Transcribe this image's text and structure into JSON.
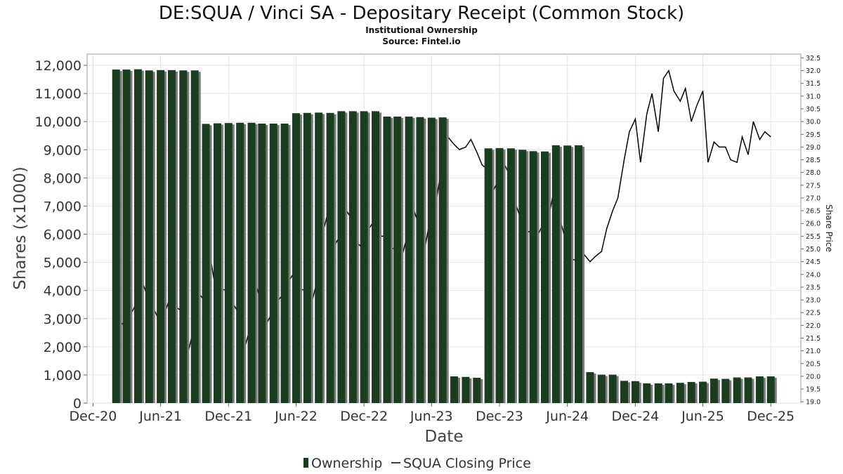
{
  "title": "DE:SQUA / Vinci SA - Depositary Receipt (Common Stock)",
  "subtitle_1": "Institutional Ownership",
  "subtitle_2": "Source: Fintel.io",
  "colors": {
    "bar": "#1a3d20",
    "bar_shadow": "#7a7a7a",
    "price_line": "#000000",
    "grid": "#e2e2e2"
  },
  "chart_data": {
    "type": "bar",
    "xlabel": "Date",
    "ylabel": "Shares (x1000)",
    "y2label": "Share Price",
    "ylim": [
      0,
      12400
    ],
    "y2lim": [
      18.95,
      32.65
    ],
    "xlim": [
      "2020-11-15",
      "2026-02-20"
    ],
    "grid": true,
    "legend_position": "bottom-center",
    "yticks": [
      0,
      1000,
      2000,
      3000,
      4000,
      5000,
      6000,
      7000,
      8000,
      9000,
      10000,
      11000,
      12000
    ],
    "ytick_labels": [
      "0",
      "1,000",
      "2,000",
      "3,000",
      "4,000",
      "5,000",
      "6,000",
      "7,000",
      "8,000",
      "9,000",
      "10,000",
      "11,000",
      "12,000"
    ],
    "y2ticks": [
      "19.0",
      "19.5",
      "20.0",
      "20.5",
      "21.0",
      "21.5",
      "22.0",
      "22.5",
      "23.0",
      "23.5",
      "24.0",
      "24.5",
      "25.0",
      "25.5",
      "26.0",
      "26.5",
      "27.0",
      "27.5",
      "28.0",
      "28.5",
      "29.0",
      "29.5",
      "30.0",
      "30.5",
      "31.0",
      "31.5",
      "32.0",
      "32.5"
    ],
    "xticks": [
      {
        "label": "Dec-20",
        "date": "2020-12-01"
      },
      {
        "label": "Jun-21",
        "date": "2021-06-01"
      },
      {
        "label": "Dec-21",
        "date": "2021-12-01"
      },
      {
        "label": "Jun-22",
        "date": "2022-06-01"
      },
      {
        "label": "Dec-22",
        "date": "2022-12-01"
      },
      {
        "label": "Jun-23",
        "date": "2023-06-01"
      },
      {
        "label": "Dec-23",
        "date": "2023-12-01"
      },
      {
        "label": "Jun-24",
        "date": "2024-06-01"
      },
      {
        "label": "Dec-24",
        "date": "2024-12-01"
      },
      {
        "label": "Jun-25",
        "date": "2025-06-01"
      },
      {
        "label": "Dec-25",
        "date": "2025-12-01"
      }
    ],
    "series": [
      {
        "name": "Ownership",
        "kind": "bar",
        "x": [
          "2021-02-01",
          "2021-03-01",
          "2021-04-01",
          "2021-05-01",
          "2021-06-01",
          "2021-07-01",
          "2021-08-01",
          "2021-09-01",
          "2021-10-01",
          "2021-11-01",
          "2021-12-01",
          "2022-01-01",
          "2022-02-01",
          "2022-03-01",
          "2022-04-01",
          "2022-05-01",
          "2022-06-01",
          "2022-07-01",
          "2022-08-01",
          "2022-09-01",
          "2022-10-01",
          "2022-11-01",
          "2022-12-01",
          "2023-01-01",
          "2023-02-01",
          "2023-03-01",
          "2023-04-01",
          "2023-05-01",
          "2023-06-01",
          "2023-07-01",
          "2023-08-01",
          "2023-09-01",
          "2023-10-01",
          "2023-11-01",
          "2023-12-01",
          "2024-01-01",
          "2024-02-01",
          "2024-03-01",
          "2024-04-01",
          "2024-05-01",
          "2024-06-01",
          "2024-07-01",
          "2024-08-01",
          "2024-09-01",
          "2024-10-01",
          "2024-11-01",
          "2024-12-01",
          "2025-01-01",
          "2025-02-01",
          "2025-03-01",
          "2025-04-01",
          "2025-05-01",
          "2025-06-01",
          "2025-07-01",
          "2025-08-01",
          "2025-09-01",
          "2025-10-01",
          "2025-11-01",
          "2025-12-01"
        ],
        "values": [
          11850,
          11850,
          11860,
          11820,
          11830,
          11830,
          11820,
          11820,
          9920,
          9940,
          9950,
          9960,
          9960,
          9930,
          9930,
          9930,
          10300,
          10310,
          10320,
          10310,
          10370,
          10370,
          10370,
          10370,
          10180,
          10180,
          10180,
          10160,
          10140,
          10150,
          950,
          930,
          900,
          9050,
          9060,
          9050,
          9000,
          8950,
          8940,
          9160,
          9150,
          9160,
          1100,
          1010,
          1010,
          790,
          780,
          700,
          700,
          700,
          720,
          750,
          760,
          870,
          860,
          910,
          910,
          950,
          950
        ]
      },
      {
        "name": "SQUA Closing Price",
        "kind": "line",
        "x": [
          "2021-02-01",
          "2021-02-15",
          "2021-03-01",
          "2021-03-15",
          "2021-04-01",
          "2021-04-15",
          "2021-05-01",
          "2021-05-15",
          "2021-06-01",
          "2021-06-15",
          "2021-07-01",
          "2021-07-15",
          "2021-08-01",
          "2021-08-15",
          "2021-09-01",
          "2021-09-15",
          "2021-10-01",
          "2021-10-15",
          "2021-11-01",
          "2021-11-15",
          "2021-12-01",
          "2021-12-15",
          "2022-01-01",
          "2022-01-15",
          "2022-02-01",
          "2022-02-15",
          "2022-03-01",
          "2022-03-15",
          "2022-04-01",
          "2022-04-15",
          "2022-05-01",
          "2022-05-15",
          "2022-06-01",
          "2022-06-15",
          "2022-07-01",
          "2022-07-15",
          "2022-08-01",
          "2022-08-15",
          "2022-09-01",
          "2022-09-15",
          "2022-10-01",
          "2022-10-15",
          "2022-11-01",
          "2022-11-15",
          "2022-12-01",
          "2022-12-15",
          "2023-01-01",
          "2023-01-15",
          "2023-02-01",
          "2023-02-15",
          "2023-03-01",
          "2023-03-15",
          "2023-04-01",
          "2023-04-15",
          "2023-05-01",
          "2023-05-15",
          "2023-06-01",
          "2023-06-15",
          "2023-07-01",
          "2023-07-15",
          "2023-08-01",
          "2023-08-15",
          "2023-09-01",
          "2023-09-15",
          "2023-10-01",
          "2023-10-15",
          "2023-11-01",
          "2023-11-15",
          "2023-12-01",
          "2023-12-15",
          "2024-01-01",
          "2024-01-15",
          "2024-02-01",
          "2024-02-15",
          "2024-03-01",
          "2024-03-15",
          "2024-04-01",
          "2024-04-15",
          "2024-05-01",
          "2024-05-15",
          "2024-06-01",
          "2024-06-15",
          "2024-07-01",
          "2024-07-15",
          "2024-08-01",
          "2024-08-15",
          "2024-09-01",
          "2024-09-15",
          "2024-10-01",
          "2024-10-15",
          "2024-11-01",
          "2024-11-15",
          "2024-12-01",
          "2024-12-15",
          "2025-01-01",
          "2025-01-15",
          "2025-02-01",
          "2025-02-15",
          "2025-03-01",
          "2025-03-15",
          "2025-04-01",
          "2025-04-15",
          "2025-05-01",
          "2025-05-15",
          "2025-06-01",
          "2025-06-15",
          "2025-07-01",
          "2025-07-15",
          "2025-08-01",
          "2025-08-15",
          "2025-09-01",
          "2025-09-15",
          "2025-10-01",
          "2025-10-15",
          "2025-11-01",
          "2025-11-15",
          "2025-12-01"
        ],
        "values": [
          21.8,
          22.1,
          21.9,
          22.5,
          23.0,
          23.6,
          23.0,
          22.6,
          22.1,
          22.6,
          23.3,
          22.7,
          22.5,
          21.0,
          22.0,
          23.2,
          22.9,
          24.5,
          23.0,
          23.4,
          23.4,
          22.8,
          22.4,
          21.2,
          22.1,
          23.5,
          22.8,
          22.1,
          22.6,
          23.0,
          23.3,
          23.8,
          24.2,
          23.4,
          23.4,
          23.0,
          24.0,
          25.8,
          26.8,
          25.2,
          25.6,
          26.5,
          26.1,
          25.2,
          25.0,
          25.8,
          26.2,
          25.5,
          25.5,
          25.0,
          25.1,
          24.8,
          25.8,
          26.5,
          25.8,
          25.1,
          26.5,
          27.0,
          28.5,
          29.4,
          29.1,
          28.9,
          29.0,
          29.3,
          28.8,
          28.3,
          28.1,
          27.3,
          27.8,
          28.3,
          27.8,
          26.7,
          26.0,
          25.7,
          25.6,
          25.6,
          26.1,
          26.5,
          27.7,
          26.0,
          25.1,
          24.6,
          24.5,
          24.8,
          24.5,
          24.7,
          24.9,
          25.8,
          26.5,
          27.0,
          28.5,
          29.6,
          30.1,
          28.4,
          30.3,
          31.1,
          29.6,
          31.7,
          32.0,
          31.2,
          30.8,
          31.3,
          30.0,
          30.6,
          31.2,
          28.4,
          29.2,
          29.0,
          29.0,
          28.5,
          28.4,
          29.4,
          28.7,
          30.0,
          29.3,
          29.6,
          29.4
        ]
      }
    ]
  }
}
